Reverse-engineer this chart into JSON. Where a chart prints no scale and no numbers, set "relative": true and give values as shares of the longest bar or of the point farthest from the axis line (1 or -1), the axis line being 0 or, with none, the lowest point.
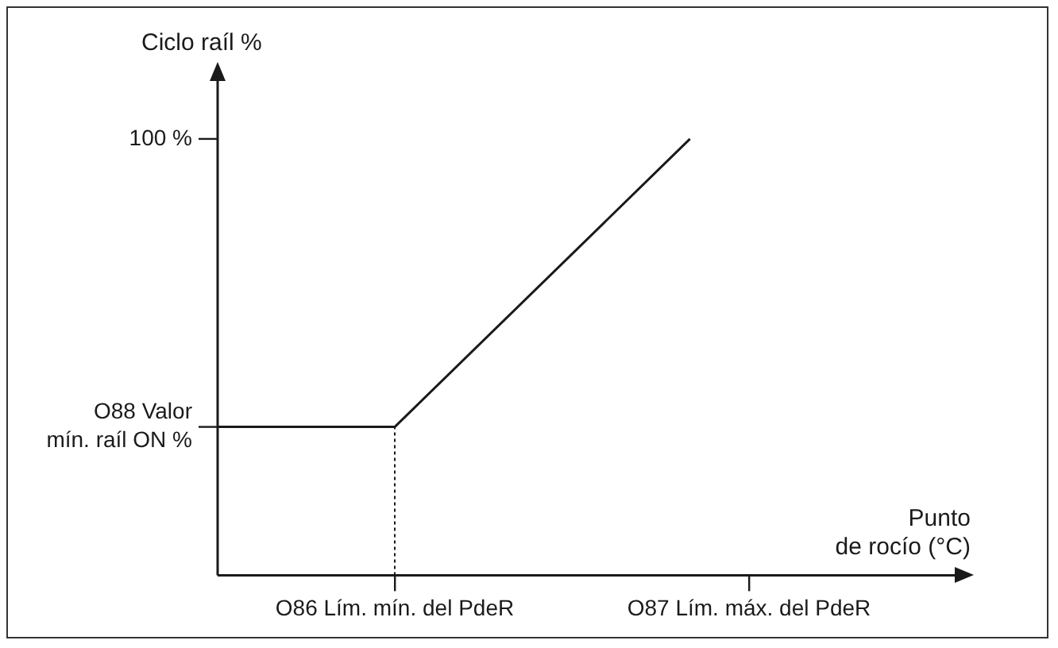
{
  "chart_data": {
    "type": "line",
    "relative": true,
    "xlabel": "Punto\nde rocío (°C)",
    "ylabel": "Ciclo raíl %",
    "categories": [
      null,
      null,
      null,
      "O86 Lím. mín. del PdeR",
      null,
      null,
      null,
      null,
      null,
      "O87 Lím. máx. del PdeR",
      null,
      null,
      null
    ],
    "series": [
      {
        "color": "#1a1a1a",
        "values": [
          0.34,
          null,
          null,
          0.34,
          null,
          null,
          null,
          null,
          1,
          null,
          null,
          null,
          null
        ]
      }
    ],
    "annotations": [
      "100 %",
      "O88 Valor\nmín. raíl ON %"
    ],
    "ref_lines": [
      {
        "axis": "x",
        "value": "O86 Lím. mín. del PdeR",
        "line_style": "dotted"
      }
    ],
    "legend": false,
    "marker": "none",
    "line_style": "solid"
  }
}
